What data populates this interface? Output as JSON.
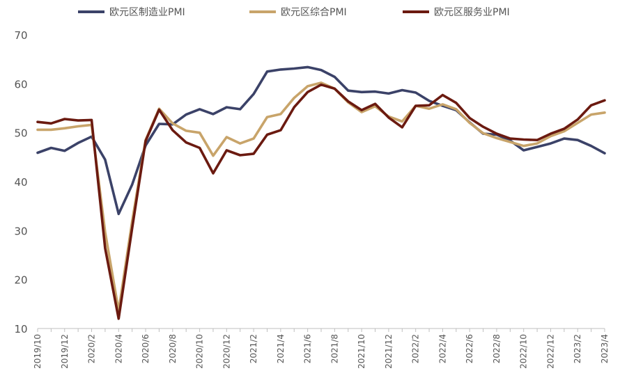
{
  "chart_data": {
    "type": "line",
    "title": "",
    "xlabel": "",
    "ylabel": "",
    "ylim": [
      10,
      70
    ],
    "yticks": [
      10,
      20,
      30,
      40,
      50,
      60,
      70
    ],
    "grid": false,
    "legend_position": "top",
    "x_categories": [
      "2019/10",
      "2019/11",
      "2019/12",
      "2020/1",
      "2020/2",
      "2020/3",
      "2020/4",
      "2020/5",
      "2020/6",
      "2020/7",
      "2020/8",
      "2020/9",
      "2020/10",
      "2020/11",
      "2020/12",
      "2021/1",
      "2021/2",
      "2021/3",
      "2021/4",
      "2021/5",
      "2021/6",
      "2021/7",
      "2021/8",
      "2021/9",
      "2021/10",
      "2021/11",
      "2021/12",
      "2022/1",
      "2022/2",
      "2022/3",
      "2022/4",
      "2022/5",
      "2022/6",
      "2022/7",
      "2022/8",
      "2022/9",
      "2022/10",
      "2022/11",
      "2022/12",
      "2023/1",
      "2023/2",
      "2023/3",
      "2023/4"
    ],
    "x_tick_labels": [
      "2019/10",
      "2019/12",
      "2020/2",
      "2020/4",
      "2020/6",
      "2020/8",
      "2020/10",
      "2020/12",
      "2021/2",
      "2021/4",
      "2021/6",
      "2021/8",
      "2021/10",
      "2021/12",
      "2022/2",
      "2022/4",
      "2022/6",
      "2022/8",
      "2022/10",
      "2022/12",
      "2023/2",
      "2023/4"
    ],
    "series": [
      {
        "name": "欧元区制造业PMI",
        "color": "#3b4268",
        "values": [
          45.9,
          46.9,
          46.3,
          47.9,
          49.2,
          44.5,
          33.4,
          39.4,
          47.4,
          51.8,
          51.7,
          53.7,
          54.8,
          53.8,
          55.2,
          54.8,
          57.9,
          62.5,
          62.9,
          63.1,
          63.4,
          62.8,
          61.4,
          58.6,
          58.3,
          58.4,
          58.0,
          58.7,
          58.2,
          56.5,
          55.5,
          54.6,
          52.1,
          49.8,
          49.6,
          48.4,
          46.4,
          47.1,
          47.8,
          48.8,
          48.5,
          47.3,
          45.8
        ]
      },
      {
        "name": "欧元区综合PMI",
        "color": "#c8a46a",
        "values": [
          50.6,
          50.6,
          50.9,
          51.3,
          51.6,
          29.7,
          13.6,
          31.9,
          48.5,
          54.9,
          51.9,
          50.4,
          50.0,
          45.3,
          49.1,
          47.8,
          48.8,
          53.2,
          53.8,
          57.1,
          59.5,
          60.2,
          59.0,
          56.2,
          54.2,
          55.4,
          53.3,
          52.3,
          55.5,
          54.9,
          55.8,
          54.8,
          52.0,
          49.9,
          48.9,
          48.1,
          47.3,
          47.8,
          49.3,
          50.3,
          52.0,
          53.7,
          54.1
        ]
      },
      {
        "name": "欧元区服务业PMI",
        "color": "#6b1a10",
        "values": [
          52.2,
          51.9,
          52.8,
          52.5,
          52.6,
          26.4,
          12.0,
          30.5,
          48.3,
          54.7,
          50.5,
          48.0,
          46.9,
          41.7,
          46.4,
          45.4,
          45.7,
          49.6,
          50.5,
          55.2,
          58.3,
          59.8,
          59.0,
          56.4,
          54.6,
          55.9,
          53.1,
          51.1,
          55.5,
          55.6,
          57.7,
          56.1,
          53.0,
          51.2,
          49.8,
          48.8,
          48.6,
          48.5,
          49.8,
          50.8,
          52.7,
          55.6,
          56.6
        ]
      }
    ]
  }
}
